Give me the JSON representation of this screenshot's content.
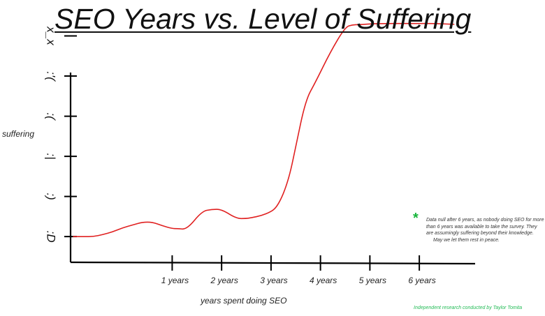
{
  "chart_data": {
    "type": "line",
    "title": "SEO Years vs. Level of Suffering",
    "xlabel": "years spent doing SEO",
    "ylabel": "suffering",
    "x_tick_labels": [
      "1 years",
      "2 years",
      "3 years",
      "4 years",
      "5 years",
      "6 years"
    ],
    "x_ticks": [
      1,
      2,
      3,
      4,
      5,
      6
    ],
    "y_levels": [
      ":D",
      ":)",
      ":|",
      ":(",
      ":'(",
      "x_x"
    ],
    "xlim": [
      -1.07,
      7.2
    ],
    "ylim": [
      -0.64,
      5.2
    ],
    "series": [
      {
        "color": "#e02020",
        "x": [
          -1.0,
          -0.8,
          -0.6,
          -0.4,
          -0.2,
          0.0,
          0.2,
          0.4,
          0.6,
          0.8,
          1.0,
          1.1,
          1.3,
          1.6,
          1.8,
          2.0,
          2.3,
          2.5,
          2.6,
          2.8,
          3.0,
          3.1,
          3.2,
          3.3,
          3.4,
          3.5,
          3.7,
          3.9,
          4.2,
          4.5,
          4.65,
          4.8,
          5.0,
          5.3,
          5.7,
          6.0,
          6.3,
          6.7
        ],
        "y": [
          0.0,
          0.0,
          0.0,
          0.05,
          0.12,
          0.22,
          0.29,
          0.36,
          0.36,
          0.27,
          0.2,
          0.2,
          0.18,
          0.63,
          0.68,
          0.68,
          0.45,
          0.45,
          0.47,
          0.52,
          0.62,
          0.72,
          0.93,
          1.23,
          1.65,
          2.25,
          3.4,
          3.85,
          4.6,
          5.22,
          5.28,
          5.28,
          5.3,
          5.31,
          5.31,
          5.31,
          5.31,
          5.29
        ]
      }
    ],
    "grid": false,
    "legend": "none"
  },
  "note": {
    "marker": "*",
    "text": "Data null after 6 years, as nobody doing SEO for more than 6 years was available to take the survey. They are assumingly suffering beyond their knowledge.",
    "rest": "May we let them rest in peace.",
    "marker_color": "#16b53a"
  },
  "credit": {
    "text": "Independent research conducted by Taylor Tomita",
    "color": "#22bb55"
  }
}
